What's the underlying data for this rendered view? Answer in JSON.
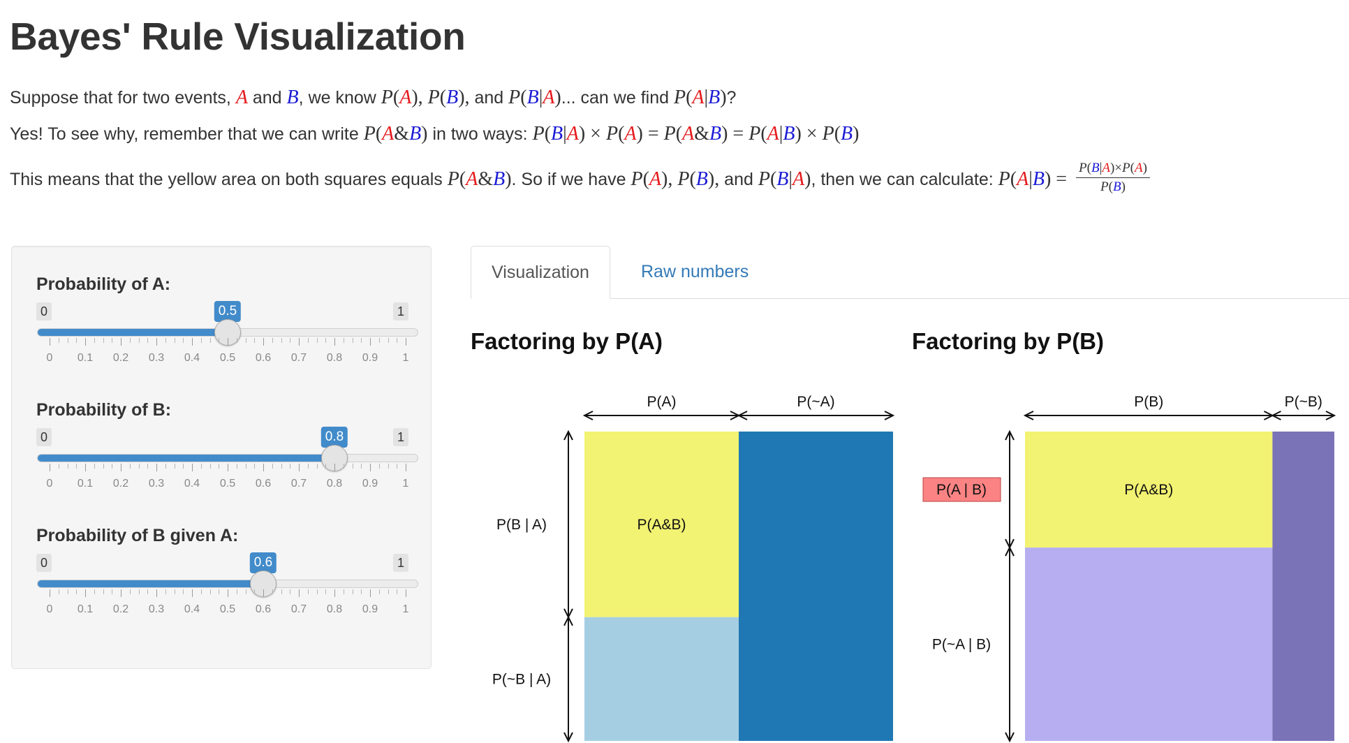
{
  "page": {
    "title": "Bayes' Rule Visualization",
    "intro_prefix": "Suppose that for two events,",
    "and_word": "and",
    "we_know": "we know",
    "can_we_find": "... can we find",
    "yes_text": "Yes! To see why, remember that we can write",
    "in_two_ways": "in two ways:",
    "means_text": "This means that the yellow area on both squares equals",
    "so_if": ". So if we have",
    "then_calc": ", then we can calculate:"
  },
  "sliders": [
    {
      "label": "Probability of A:",
      "min": 0,
      "max": 1,
      "min_label": "0",
      "max_label": "1",
      "value": 0.5,
      "value_label": "0.5"
    },
    {
      "label": "Probability of B:",
      "min": 0,
      "max": 1,
      "min_label": "0",
      "max_label": "1",
      "value": 0.8,
      "value_label": "0.8"
    },
    {
      "label": "Probability of B given A:",
      "min": 0,
      "max": 1,
      "min_label": "0",
      "max_label": "1",
      "value": 0.6,
      "value_label": "0.6"
    }
  ],
  "tick_labels": [
    "0",
    "0.1",
    "0.2",
    "0.3",
    "0.4",
    "0.5",
    "0.6",
    "0.7",
    "0.8",
    "0.9",
    "1"
  ],
  "tabs": [
    {
      "label": "Visualization",
      "active": true
    },
    {
      "label": "Raw numbers",
      "active": false
    }
  ],
  "charts": {
    "left": {
      "title": "Factoring by P(A)",
      "col_labels": [
        "P(A)",
        "P(~A)"
      ],
      "row_labels": [
        "P(B | A)",
        "P(~B | A)"
      ],
      "center_label": "P(A&B)",
      "col_split": 0.5,
      "row_split": 0.6,
      "colors": {
        "ab": "#f2f273",
        "a_notb": "#a6cee3",
        "nota": "#1f78b4"
      }
    },
    "right": {
      "title": "Factoring by P(B)",
      "col_labels": [
        "P(B)",
        "P(~B)"
      ],
      "row_labels": [
        "P(A | B)",
        "P(~A | B)"
      ],
      "center_label": "P(A&B)",
      "col_split": 0.8,
      "row_split": 0.375,
      "colors": {
        "ab": "#f2f273",
        "b_nota": "#b6aef0",
        "notb": "#7b73b7",
        "highlight": "#fb8383"
      }
    }
  }
}
